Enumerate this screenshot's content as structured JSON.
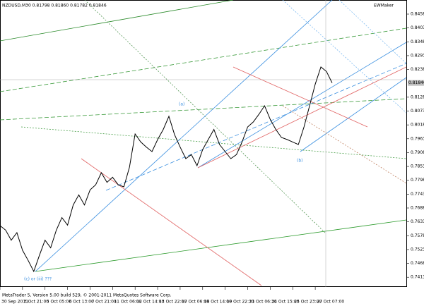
{
  "chart_data": {
    "type": "line",
    "title": "NZDUSD,M30 0.81798 0.81860 0.81782 0.81846",
    "indicator": "EWMaker",
    "footer": "MetaTrader 5, Version 5.00 build 529, © 2001-2011 MetaQuotes Software Corp.",
    "categories": [
      "30 Sep 2011",
      null,
      null,
      null,
      "3 Oct 21:00",
      null,
      null,
      null,
      "5 Oct 05:00",
      null,
      null,
      null,
      "6 Oct 13:00",
      null,
      null,
      null,
      "7 Oct 21:00",
      null,
      null,
      null,
      "11 Oct 06:00",
      null,
      null,
      null,
      "12 Oct 14:00",
      null,
      null,
      null,
      "13 Oct 22:00",
      null,
      null,
      null,
      "17 Oct 06:00",
      null,
      null,
      null,
      "18 Oct 14:00",
      null,
      null,
      null,
      "19 Oct 22:30",
      null,
      null,
      null,
      "21 Oct 06:30",
      null,
      null,
      null,
      "24 Oct 15:00",
      null,
      null,
      null,
      "25 Oct 23:00",
      null,
      null,
      null,
      "27 Oct 07:00",
      null,
      null,
      null
    ],
    "series": [
      {
        "name": "NZDUSD",
        "color": "#000000",
        "values": [
          0.7618,
          0.76,
          0.756,
          0.759,
          0.752,
          0.748,
          0.7436,
          0.75,
          0.756,
          0.753,
          0.76,
          0.765,
          0.762,
          0.77,
          0.774,
          0.77,
          0.776,
          0.778,
          0.7828,
          0.779,
          0.781,
          0.778,
          0.7772,
          0.785,
          0.7982,
          0.795,
          0.793,
          0.7912,
          0.796,
          0.8,
          0.8052,
          0.798,
          0.793,
          0.7884,
          0.79,
          0.7856,
          0.792,
          0.796,
          0.8,
          0.794,
          0.7912,
          0.7884,
          0.79,
          0.795,
          0.801,
          0.803,
          0.806,
          0.8094,
          0.804,
          0.8,
          0.7968,
          0.796,
          0.795,
          0.794,
          0.801,
          0.8094,
          0.818,
          0.8248,
          0.823,
          0.81846
        ]
      }
    ],
    "current_price": {
      "value": 0.81846,
      "label": "0.81846"
    },
    "annotations": [
      "(a)",
      "(b)",
      "(c) or (iii) ???"
    ],
    "ylim": [
      0.738,
      0.85
    ],
    "yticks": [
      {
        "value": 0.7413,
        "label": "0.74130"
      },
      {
        "value": 0.7468,
        "label": "0.74680"
      },
      {
        "value": 0.7523,
        "label": "0.75230"
      },
      {
        "value": 0.7578,
        "label": "0.75780"
      },
      {
        "value": 0.7633,
        "label": "0.76330"
      },
      {
        "value": 0.7688,
        "label": "0.76880"
      },
      {
        "value": 0.7743,
        "label": "0.77430"
      },
      {
        "value": 0.7798,
        "label": "0.77980"
      },
      {
        "value": 0.7853,
        "label": "0.78530"
      },
      {
        "value": 0.7908,
        "label": "0.79080"
      },
      {
        "value": 0.7963,
        "label": "0.79630"
      },
      {
        "value": 0.8018,
        "label": "0.80180"
      },
      {
        "value": 0.8073,
        "label": "0.80730"
      },
      {
        "value": 0.8128,
        "label": "0.81280"
      },
      {
        "value": 0.8238,
        "label": "0.82380"
      },
      {
        "value": 0.8293,
        "label": "0.82930"
      },
      {
        "value": 0.8348,
        "label": "0.83480"
      },
      {
        "value": 0.8403,
        "label": "0.84030"
      },
      {
        "value": 0.8458,
        "label": "0.84580"
      }
    ]
  }
}
